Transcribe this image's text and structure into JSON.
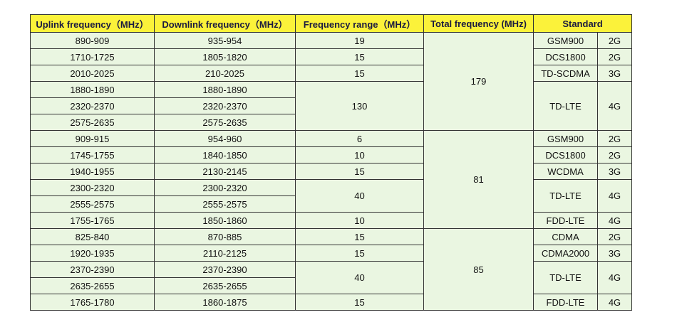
{
  "table": {
    "headers": [
      "Uplink frequency（MHz）",
      "Downlink frequency（MHz）",
      "Frequency range（MHz）",
      "Total frequency (MHz)",
      "Standard"
    ],
    "rows": [
      [
        "890-909",
        "935-954",
        "19",
        "179",
        "GSM900",
        "2G"
      ],
      [
        "1710-1725",
        "1805-1820",
        "15",
        "DCS1800",
        "2G"
      ],
      [
        "2010-2025",
        "210-2025",
        "15",
        "TD-SCDMA",
        "3G"
      ],
      [
        "1880-1890",
        "1880-1890",
        "130",
        "TD-LTE",
        "4G"
      ],
      [
        "2320-2370",
        "2320-2370"
      ],
      [
        "2575-2635",
        "2575-2635"
      ],
      [
        "909-915",
        "954-960",
        "6",
        "81",
        "GSM900",
        "2G"
      ],
      [
        "1745-1755",
        "1840-1850",
        "10",
        "DCS1800",
        "2G"
      ],
      [
        "1940-1955",
        "2130-2145",
        "15",
        "WCDMA",
        "3G"
      ],
      [
        "2300-2320",
        "2300-2320",
        "40",
        "TD-LTE",
        "4G"
      ],
      [
        "2555-2575",
        "2555-2575"
      ],
      [
        "1755-1765",
        "1850-1860",
        "10",
        "FDD-LTE",
        "4G"
      ],
      [
        "825-840",
        "870-885",
        "15",
        "85",
        "CDMA",
        "2G"
      ],
      [
        "1920-1935",
        "2110-2125",
        "15",
        "CDMA2000",
        "3G"
      ],
      [
        "2370-2390",
        "2370-2390",
        "40",
        "TD-LTE",
        "4G"
      ],
      [
        "2635-2655",
        "2635-2655"
      ],
      [
        "1765-1780",
        "1860-1875",
        "15",
        "FDD-LTE",
        "4G"
      ]
    ]
  }
}
